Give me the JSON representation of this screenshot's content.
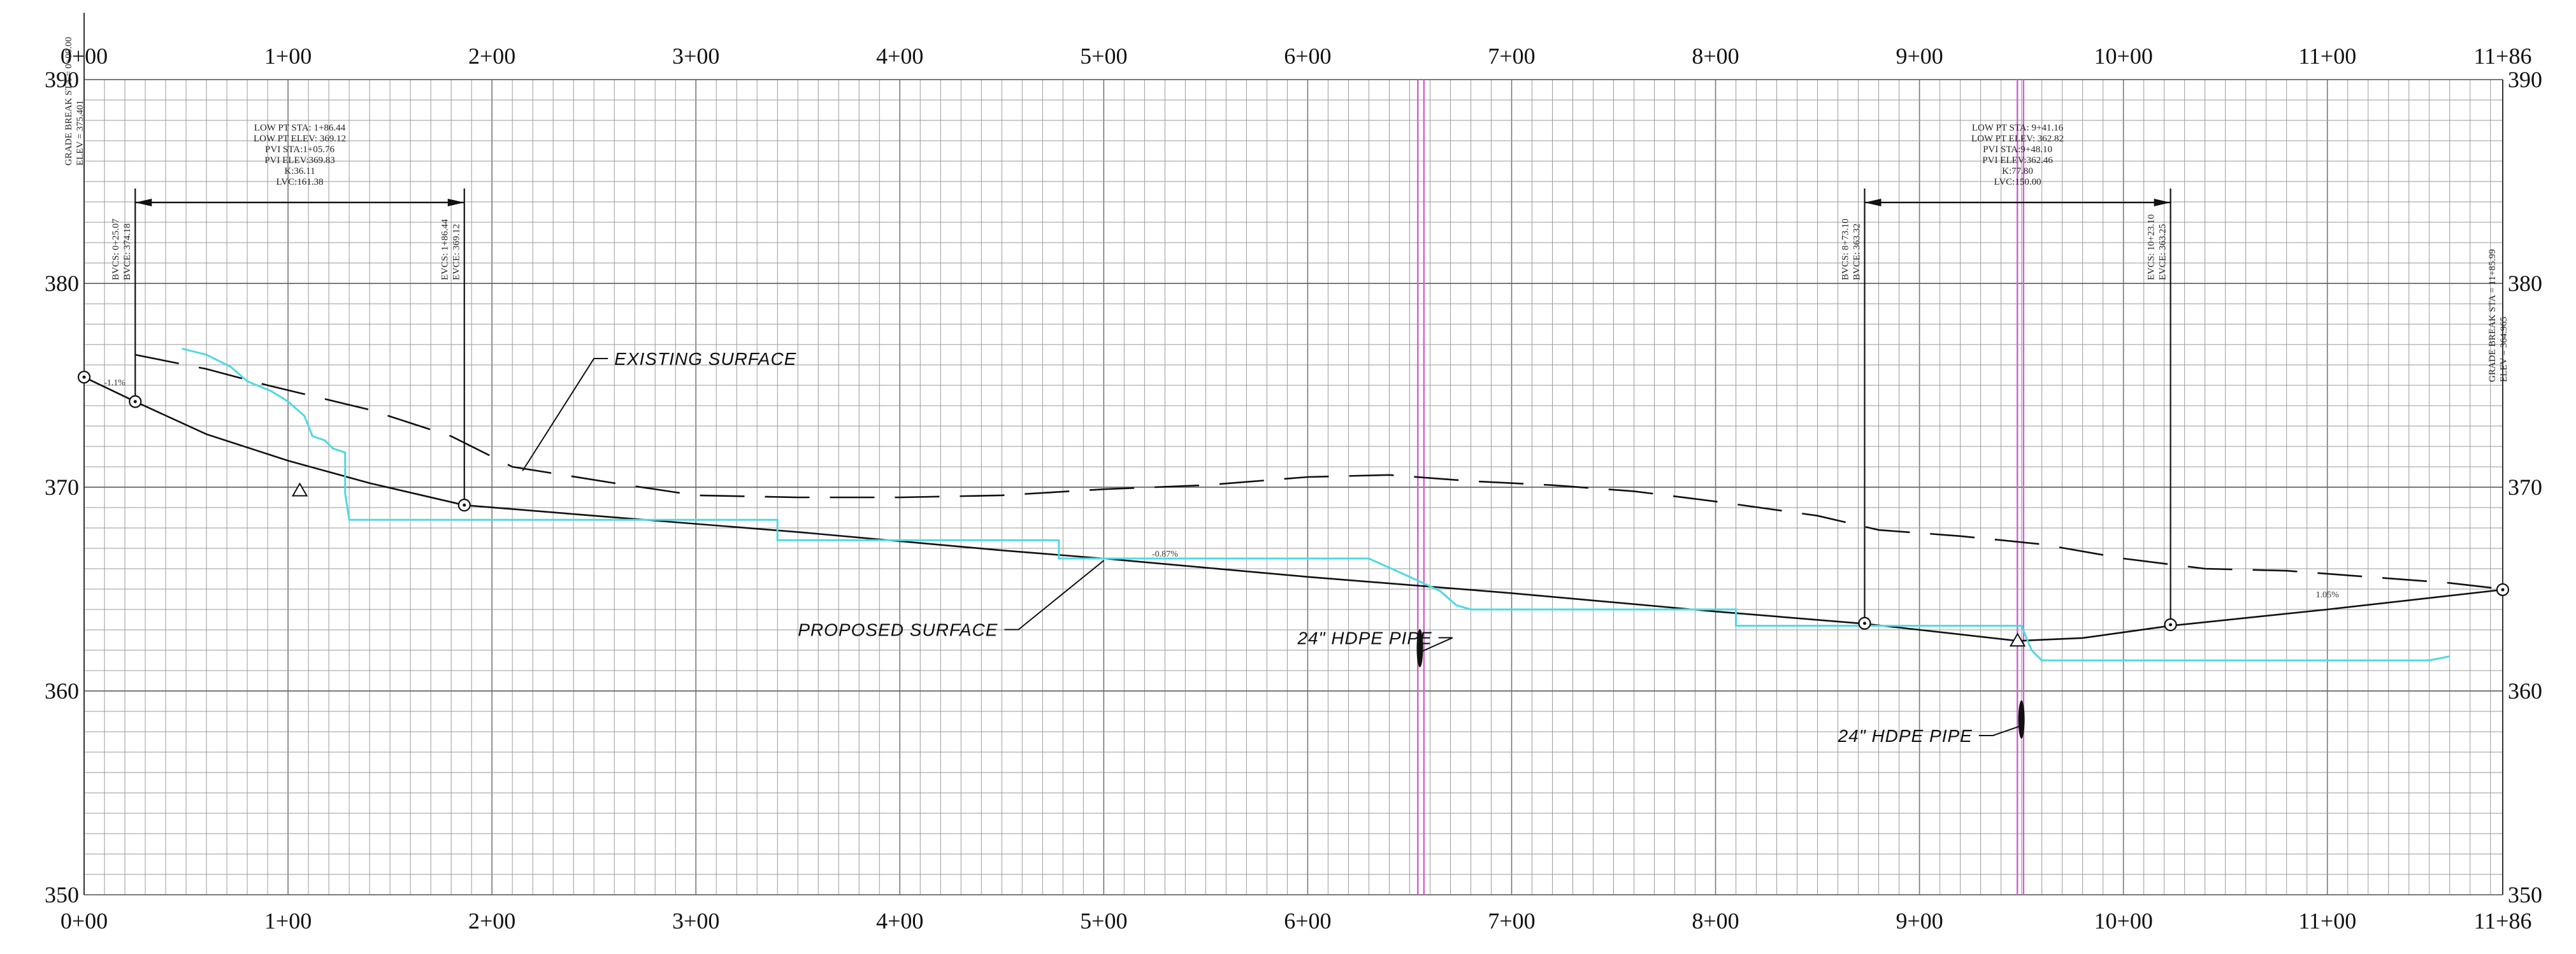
{
  "chart_data": {
    "type": "line",
    "x_axis": {
      "ticks": [
        "0+00",
        "1+00",
        "2+00",
        "3+00",
        "4+00",
        "5+00",
        "6+00",
        "7+00",
        "8+00",
        "9+00",
        "10+00",
        "11+00",
        "11+86"
      ],
      "tick_values": [
        0,
        100,
        200,
        300,
        400,
        500,
        600,
        700,
        800,
        900,
        1000,
        1100,
        1186
      ],
      "range": [
        0,
        1186
      ]
    },
    "y_axis": {
      "ticks": [
        "350",
        "360",
        "370",
        "380",
        "390"
      ],
      "tick_values": [
        350,
        360,
        370,
        380,
        390
      ],
      "range": [
        350,
        390
      ]
    },
    "grid": true,
    "series": [
      {
        "role": "proposed",
        "color": "#111111",
        "style": "solid",
        "points": [
          [
            0,
            375.4
          ],
          [
            25.07,
            374.2
          ],
          [
            60,
            372.6
          ],
          [
            100,
            371.3
          ],
          [
            140,
            370.2
          ],
          [
            186.44,
            369.12
          ],
          [
            250,
            368.6
          ],
          [
            350,
            367.8
          ],
          [
            450,
            366.9
          ],
          [
            500,
            366.5
          ],
          [
            600,
            365.6
          ],
          [
            700,
            364.8
          ],
          [
            800,
            363.9
          ],
          [
            873.1,
            363.3
          ],
          [
            900,
            363.0
          ],
          [
            948.1,
            362.46
          ],
          [
            980,
            362.6
          ],
          [
            1023.1,
            363.2
          ],
          [
            1100,
            364.0
          ],
          [
            1186,
            364.97
          ]
        ]
      },
      {
        "role": "existing",
        "color": "#111111",
        "style": "dashed",
        "points": [
          [
            25,
            376.5
          ],
          [
            60,
            375.8
          ],
          [
            90,
            375.0
          ],
          [
            140,
            373.8
          ],
          [
            180,
            372.5
          ],
          [
            210,
            371.0
          ],
          [
            260,
            370.2
          ],
          [
            300,
            369.6
          ],
          [
            350,
            369.5
          ],
          [
            400,
            369.5
          ],
          [
            450,
            369.6
          ],
          [
            500,
            369.9
          ],
          [
            550,
            370.1
          ],
          [
            600,
            370.5
          ],
          [
            640,
            370.6
          ],
          [
            680,
            370.3
          ],
          [
            720,
            370.1
          ],
          [
            760,
            369.8
          ],
          [
            800,
            369.3
          ],
          [
            850,
            368.6
          ],
          [
            880,
            367.9
          ],
          [
            920,
            367.6
          ],
          [
            960,
            367.2
          ],
          [
            1000,
            366.5
          ],
          [
            1040,
            366.0
          ],
          [
            1080,
            365.9
          ],
          [
            1120,
            365.6
          ],
          [
            1160,
            365.3
          ],
          [
            1186,
            365.0
          ]
        ]
      },
      {
        "role": "cyan-line",
        "color": "#4fd9e3",
        "style": "solid",
        "points": [
          [
            48,
            376.8
          ],
          [
            60,
            376.5
          ],
          [
            72,
            375.9
          ],
          [
            80,
            375.2
          ],
          [
            92,
            374.7
          ],
          [
            100,
            374.2
          ],
          [
            108,
            373.5
          ],
          [
            112,
            372.5
          ],
          [
            118,
            372.3
          ],
          [
            122,
            371.9
          ],
          [
            128,
            371.7
          ],
          [
            128,
            369.7
          ],
          [
            130,
            368.4
          ],
          [
            150,
            368.4
          ],
          [
            340,
            368.4
          ],
          [
            340,
            367.4
          ],
          [
            478,
            367.4
          ],
          [
            478,
            366.5
          ],
          [
            630,
            366.5
          ],
          [
            650,
            365.6
          ],
          [
            665,
            364.9
          ],
          [
            673,
            364.2
          ],
          [
            680,
            364.0
          ],
          [
            810,
            364.0
          ],
          [
            810,
            363.2
          ],
          [
            950,
            363.2
          ],
          [
            955,
            362.0
          ],
          [
            960,
            361.5
          ],
          [
            1150,
            361.5
          ],
          [
            1160,
            361.7
          ]
        ]
      }
    ],
    "vertical_lines": [
      {
        "sta": 654,
        "color": "#cc66cc"
      },
      {
        "sta": 657,
        "color": "#cc66cc"
      },
      {
        "sta": 948,
        "color": "#cc66cc"
      },
      {
        "sta": 951,
        "color": "#cc66cc"
      }
    ],
    "vertical_curves": [
      {
        "bvc_sta": 25.07,
        "bvc_elev": 374.2,
        "evc_sta": 186.44,
        "evc_elev": 369.12,
        "pvi_sta": 105.76,
        "pvi_elev": 369.83,
        "note": [
          "LOW PT STA: 1+86.44",
          "LOW PT ELEV: 369.12",
          "PVI STA:1+05.76",
          "PVI ELEV:369.83",
          "K:36.11",
          "LVC:161.38"
        ],
        "bvc_label": [
          "BVCS: 0+25.07",
          "BVCE: 374.18"
        ],
        "evc_label": [
          "EVCS: 1+86.44",
          "EVCE: 369.12"
        ]
      },
      {
        "bvc_sta": 873.1,
        "bvc_elev": 363.32,
        "evc_sta": 1023.1,
        "evc_elev": 363.25,
        "pvi_sta": 948.1,
        "pvi_elev": 362.46,
        "note": [
          "LOW PT STA: 9+41.16",
          "LOW PT ELEV: 362.82",
          "PVI STA:9+48.10",
          "PVI ELEV:362.46",
          "K:77.80",
          "LVC:150.00"
        ],
        "bvc_label": [
          "BVCS: 8+73.10",
          "BVCE: 363.32"
        ],
        "evc_label": [
          "EVCS: 10+23.10",
          "EVCE: 363.25"
        ]
      }
    ],
    "grade_breaks": [
      {
        "sta": 0,
        "elev": 375.4,
        "label": [
          "GRADE BREAK STA = 0+00.00",
          "ELEV = 375.401"
        ]
      },
      {
        "sta": 1186,
        "elev": 364.97,
        "label": [
          "GRADE BREAK STA = 11+85.99",
          "ELEV = 364.965"
        ]
      }
    ],
    "slope_labels": [
      {
        "sta": 15,
        "elev": 375.0,
        "text": "-1.1%"
      },
      {
        "sta": 530,
        "elev": 366.6,
        "text": "-0.87%"
      },
      {
        "sta": 1100,
        "elev": 364.6,
        "text": "1.05%"
      }
    ],
    "callouts": [
      {
        "text": "EXISTING SURFACE",
        "label_sta": 260,
        "label_elev": 376.0,
        "target_sta": 215,
        "target_elev": 370.8
      },
      {
        "text": "PROPOSED SURFACE",
        "label_sta": 350,
        "label_elev": 362.7,
        "target_sta": 500,
        "target_elev": 366.4
      },
      {
        "text": "24\" HDPE PIPE",
        "label_sta": 595,
        "label_elev": 362.3,
        "target_sta": 655,
        "target_elev": 361.9
      },
      {
        "text": "24\" HDPE PIPE",
        "label_sta": 860,
        "label_elev": 357.5,
        "target_sta": 950,
        "target_elev": 358.3
      }
    ],
    "pipe_markers": [
      {
        "sta": 655,
        "elev": 362.1
      },
      {
        "sta": 950,
        "elev": 358.6
      }
    ]
  }
}
